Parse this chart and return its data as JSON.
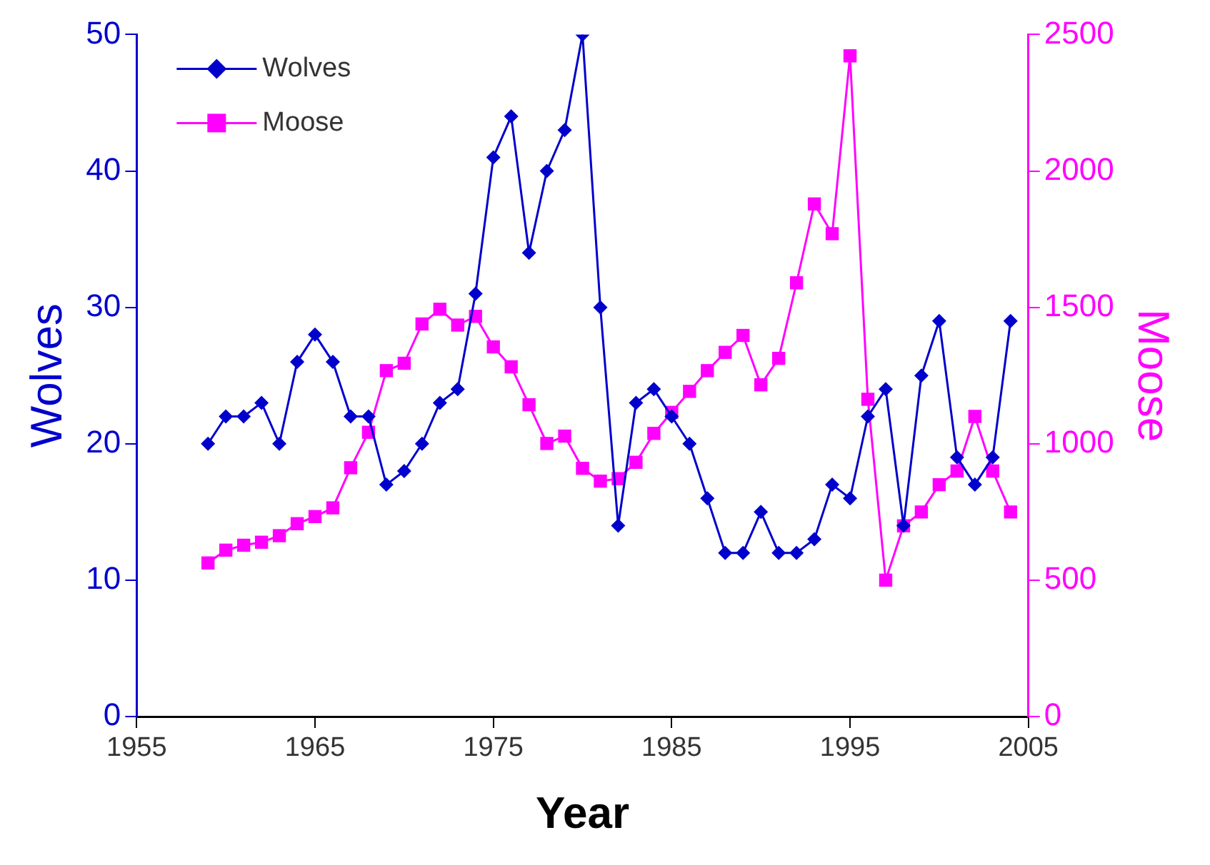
{
  "chart_data": {
    "type": "line",
    "xlabel": "Year",
    "ylabel": "Wolves",
    "y2label": "Moose",
    "x": [
      1959,
      1960,
      1961,
      1962,
      1963,
      1964,
      1965,
      1966,
      1967,
      1968,
      1969,
      1970,
      1971,
      1972,
      1973,
      1974,
      1975,
      1976,
      1977,
      1978,
      1979,
      1980,
      1981,
      1982,
      1983,
      1984,
      1985,
      1986,
      1987,
      1988,
      1989,
      1990,
      1991,
      1992,
      1993,
      1994,
      1995,
      1996,
      1997,
      1998,
      1999,
      2000,
      2001,
      2002,
      2003,
      2004
    ],
    "series": [
      {
        "name": "Wolves",
        "color": "#0000cc",
        "marker": "diamond",
        "values": [
          20,
          22,
          22,
          23,
          20,
          26,
          28,
          26,
          22,
          22,
          17,
          18,
          20,
          23,
          24,
          31,
          41,
          44,
          34,
          40,
          43,
          50,
          30,
          14,
          23,
          24,
          22,
          20,
          16,
          12,
          12,
          15,
          12,
          12,
          13,
          17,
          16,
          22,
          24,
          14,
          25,
          29,
          19,
          17,
          19,
          29
        ]
      },
      {
        "name": "Moose",
        "color": "#ff00ff",
        "marker": "square",
        "axis": "y2",
        "values": [
          563,
          610,
          628,
          639,
          663,
          707,
          733,
          765,
          912,
          1042,
          1268,
          1295,
          1439,
          1493,
          1435,
          1467,
          1355,
          1282,
          1143,
          1001,
          1028,
          910,
          863,
          872,
          932,
          1038,
          1115,
          1192,
          1268,
          1335,
          1397,
          1216,
          1313,
          1590,
          1879,
          1770,
          2422,
          1163,
          500,
          699,
          750,
          850,
          900,
          1100,
          900,
          750
        ]
      }
    ],
    "xlim": [
      1955,
      2005
    ],
    "xticks": [
      1955,
      1965,
      1975,
      1985,
      1995,
      2005
    ],
    "ylim": [
      0,
      50
    ],
    "yticks": [
      0,
      10,
      20,
      30,
      40,
      50
    ],
    "y2lim": [
      0,
      2500
    ],
    "y2ticks": [
      0,
      500,
      1000,
      1500,
      2000,
      2500
    ],
    "grid": false,
    "legend": "top left",
    "line_style": "solid"
  }
}
